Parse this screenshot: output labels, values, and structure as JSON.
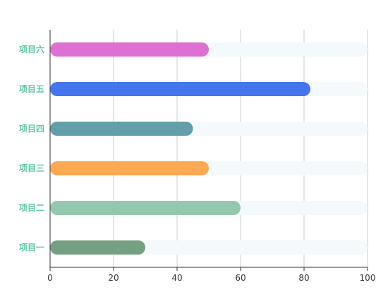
{
  "chart_data": {
    "type": "bar",
    "orientation": "horizontal",
    "categories": [
      "项目一",
      "项目二",
      "项目三",
      "项目四",
      "项目五",
      "项目六"
    ],
    "values": [
      30,
      60,
      50,
      45,
      82,
      50
    ],
    "bar_colors": [
      "#76a083",
      "#93c8af",
      "#fda853",
      "#629fa9",
      "#4474ee",
      "#dc70d3"
    ],
    "track_color": "#f4f9fb",
    "label_color": "#5dc8a6",
    "grid_color": "#cccccc",
    "axis_color": "#333333",
    "xlim": [
      0,
      100
    ],
    "x_ticks": [
      0,
      20,
      40,
      60,
      80,
      100
    ],
    "grid": true,
    "title": "",
    "xlabel": "",
    "ylabel": ""
  }
}
